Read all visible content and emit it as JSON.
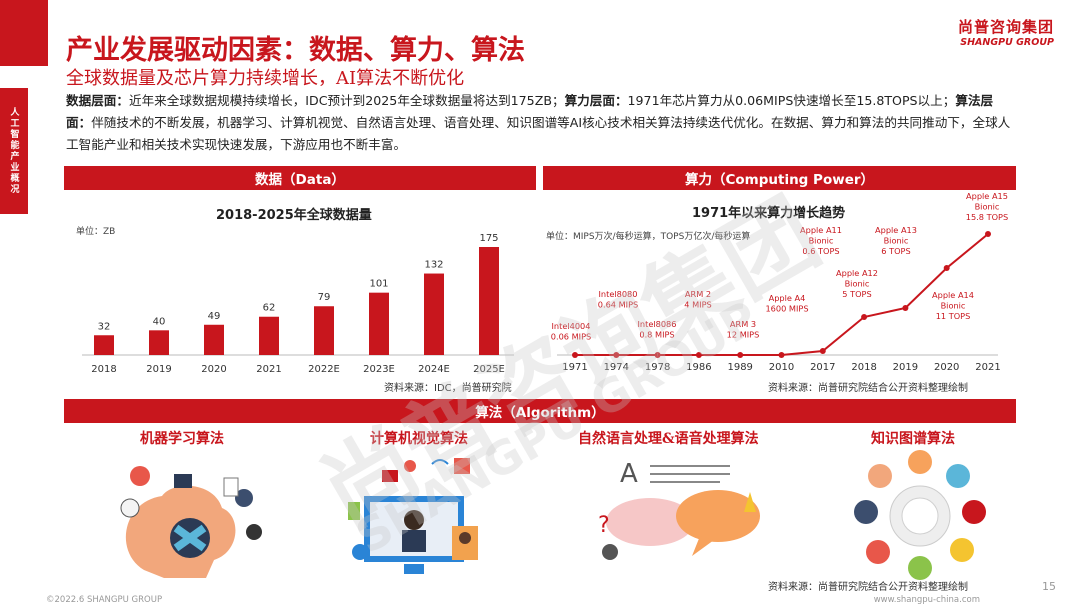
{
  "side_tab": "人工智能产业概况",
  "title": "产业发展驱动因素：数据、算力、算法",
  "subtitle": "全球数据量及芯片算力持续增长，AI算法不断优化",
  "brand": {
    "cn": "尚普咨询集团",
    "en": "SHANGPU GROUP"
  },
  "paragraph": {
    "l1": "数据层面：",
    "t1": "近年来全球数据规模持续增长，IDC预计到2025年全球数据量将达到175ZB；",
    "l2": "算力层面：",
    "t2": "1971年芯片算力从0.06MIPS快速增长至15.8TOPS以上；",
    "l3": "算法层面：",
    "t3": "伴随技术的不断发展，机器学习、计算机视觉、自然语言处理、语音处理、知识图谱等AI核心技术相关算法持续迭代优化。在数据、算力和算法的共同推动下，全球人工智能产业和相关技术实现快速发展，下游应用也不断丰富。"
  },
  "sections": {
    "data": "数据（Data）",
    "compute": "算力（Computing Power）",
    "algo": "算法（Algorithm）"
  },
  "chart_data": [
    {
      "type": "bar",
      "title": "2018-2025年全球数据量",
      "unit": "单位：ZB",
      "categories": [
        "2018",
        "2019",
        "2020",
        "2021",
        "2022E",
        "2023E",
        "2024E",
        "2025E"
      ],
      "values": [
        32,
        40,
        49,
        62,
        79,
        101,
        132,
        175
      ],
      "color": "#c8161d",
      "source": "资料来源：IDC，尚普研究院"
    },
    {
      "type": "line",
      "title": "1971年以来算力增长趋势",
      "unit": "单位：MIPS万次/每秒运算，TOPS万亿次/每秒运算",
      "categories": [
        "1971",
        "1974",
        "1978",
        "1986",
        "1989",
        "2010",
        "2017",
        "2018",
        "2019",
        "2020",
        "2021"
      ],
      "annotations": [
        {
          "label": "Intel4004\n0.06 MIPS",
          "x": "1971"
        },
        {
          "label": "Intel8080\n0.64 MIPS",
          "x": "1974"
        },
        {
          "label": "Intel8086\n0.8 MIPS",
          "x": "1978"
        },
        {
          "label": "ARM 2\n4 MIPS",
          "x": "1986"
        },
        {
          "label": "ARM 3\n12 MIPS",
          "x": "1989"
        },
        {
          "label": "Apple A4\n1600 MIPS",
          "x": "2010"
        },
        {
          "label": "Apple A11\nBionic\n0.6 TOPS",
          "x": "2017"
        },
        {
          "label": "Apple A12\nBionic\n5 TOPS",
          "x": "2018"
        },
        {
          "label": "Apple A13\nBionic\n6 TOPS",
          "x": "2019"
        },
        {
          "label": "Apple A14\nBionic\n11 TOPS",
          "x": "2020"
        },
        {
          "label": "Apple A15\nBionic\n15.8 TOPS",
          "x": "2021"
        }
      ],
      "color": "#c8161d",
      "source": "资料来源：尚普研究院结合公开资料整理绘制"
    }
  ],
  "algorithms": [
    "机器学习算法",
    "计算机视觉算法",
    "自然语言处理&语音处理算法",
    "知识图谱算法"
  ],
  "algo_source": "资料来源：尚普研究院结合公开资料整理绘制",
  "footer": {
    "left": "©2022.6 SHANGPU GROUP",
    "right": "www.shangpu-china.com",
    "page": "15"
  },
  "watermark": {
    "cn": "尚普咨询集团",
    "en": "SHANGPU GROUP"
  }
}
